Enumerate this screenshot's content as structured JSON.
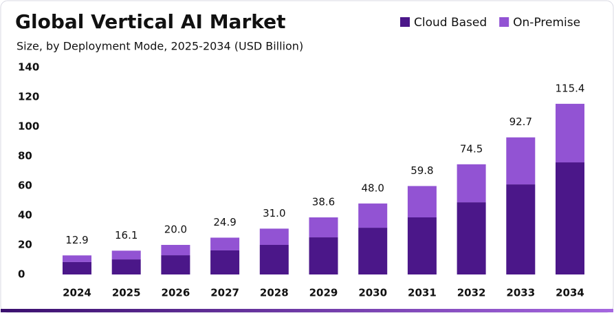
{
  "chart_data": {
    "type": "stacked-bar",
    "title": "Global Vertical AI Market",
    "subtitle": "Size, by Deployment Mode, 2025-2034 (USD Billion)",
    "categories": [
      "2024",
      "2025",
      "2026",
      "2027",
      "2028",
      "2029",
      "2030",
      "2031",
      "2032",
      "2033",
      "2034"
    ],
    "series": [
      {
        "name": "Cloud Based",
        "color": "#4b1789",
        "values": [
          8.4,
          10.2,
          13.0,
          16.3,
          20.0,
          25.1,
          31.6,
          38.6,
          48.8,
          60.9,
          75.8
        ]
      },
      {
        "name": "On-Premise",
        "color": "#9253d3",
        "values": [
          4.5,
          5.9,
          7.0,
          8.6,
          11.0,
          13.5,
          16.4,
          21.2,
          25.7,
          31.8,
          39.6
        ]
      }
    ],
    "totals": [
      12.9,
      16.1,
      20.0,
      24.9,
      31.0,
      38.6,
      48.0,
      59.8,
      74.5,
      92.7,
      115.4
    ],
    "total_labels": [
      "12.9",
      "16.1",
      "20.0",
      "24.9",
      "31.0",
      "38.6",
      "48.0",
      "59.8",
      "74.5",
      "92.7",
      "115.4"
    ],
    "ylim": [
      0,
      140
    ],
    "yticks": [
      0,
      20,
      40,
      60,
      80,
      100,
      120,
      140
    ],
    "legend": "top-right"
  }
}
